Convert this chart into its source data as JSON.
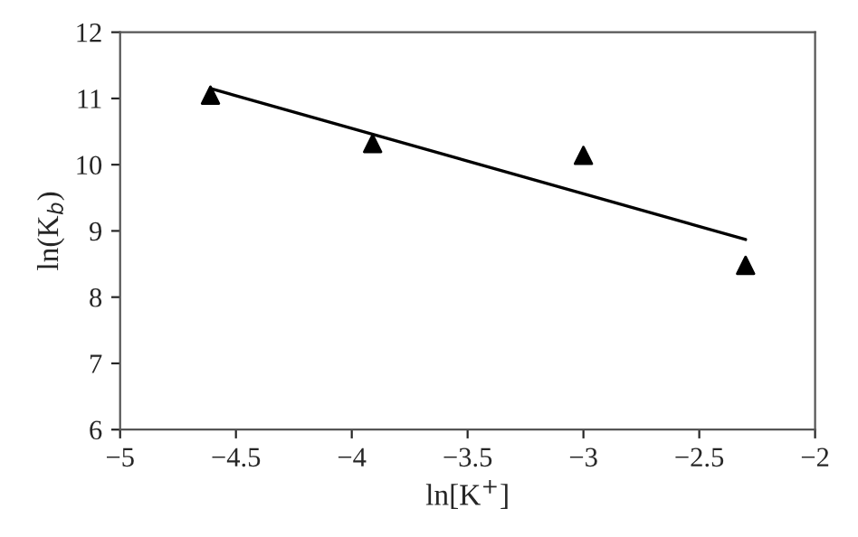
{
  "chart_data": {
    "type": "scatter",
    "xlabel": "ln[K$^{+}$]",
    "ylabel": "ln(K$_{b}$)",
    "series": [
      {
        "color": "#000000",
        "marker": "triangle",
        "x": [
          -4.61,
          -3.91,
          -3.0,
          -2.3
        ],
        "values": [
          11.05,
          10.32,
          10.14,
          8.48
        ]
      },
      {
        "type": "line",
        "color": "#000000",
        "marker": "none",
        "line_style": "solid",
        "x": [
          -4.61,
          -2.3
        ],
        "values": [
          11.15,
          8.87
        ]
      }
    ],
    "xlim": [
      -5,
      -2
    ],
    "ylim": [
      6,
      12
    ],
    "xticks": [
      {
        "value": -5,
        "label": "−5"
      },
      {
        "value": -4.5,
        "label": "−4.5"
      },
      {
        "value": -4,
        "label": "−4"
      },
      {
        "value": -3.5,
        "label": "−3.5"
      },
      {
        "value": -3,
        "label": "−3"
      },
      {
        "value": -2.5,
        "label": "−2.5"
      },
      {
        "value": -2,
        "label": "−2"
      }
    ],
    "yticks": [
      6,
      7,
      8,
      9,
      10,
      11,
      12
    ],
    "grid": false,
    "legend": false
  }
}
